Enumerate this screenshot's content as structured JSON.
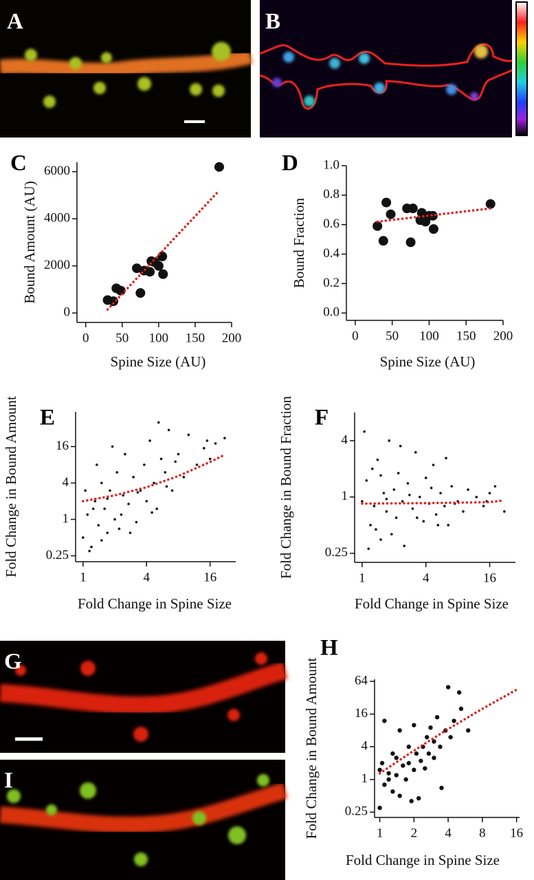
{
  "image_panels": [
    "A",
    "B",
    "G",
    "I"
  ],
  "chart_data": [
    {
      "type": "scatter",
      "panel": "C",
      "x_label": "Spine Size (AU)",
      "y_label": "Bound Amount (AU)",
      "x": [
        30,
        38,
        42,
        48,
        70,
        75,
        80,
        88,
        90,
        95,
        100,
        105,
        106,
        183
      ],
      "values": [
        550,
        500,
        1050,
        950,
        1900,
        850,
        1800,
        1750,
        2200,
        2150,
        2000,
        2400,
        1650,
        6200
      ],
      "color": "#111111",
      "fit": {
        "x": [
          30,
          183
        ],
        "values": [
          150,
          5200
        ],
        "color": "#e0201c"
      },
      "xscale": "linear",
      "yscale": "linear",
      "xlim": [
        -12,
        200
      ],
      "ylim": [
        -400,
        6400
      ],
      "xticks": [
        0,
        50,
        100,
        150,
        200
      ],
      "yticks": [
        0,
        2000,
        4000,
        6000
      ]
    },
    {
      "type": "scatter",
      "panel": "D",
      "x_label": "Spine Size (AU)",
      "y_label": "Bound Fraction",
      "x": [
        30,
        38,
        42,
        48,
        70,
        75,
        78,
        88,
        90,
        95,
        100,
        105,
        106,
        183
      ],
      "values": [
        0.59,
        0.49,
        0.75,
        0.67,
        0.71,
        0.48,
        0.71,
        0.63,
        0.68,
        0.62,
        0.66,
        0.66,
        0.57,
        0.74
      ],
      "color": "#111111",
      "fit": {
        "x": [
          30,
          183
        ],
        "values": [
          0.62,
          0.71
        ],
        "color": "#e0201c"
      },
      "xscale": "linear",
      "yscale": "linear",
      "xlim": [
        -12,
        200
      ],
      "ylim": [
        -0.05,
        1.0
      ],
      "xticks": [
        0,
        50,
        100,
        150,
        200
      ],
      "yticks": [
        {
          "value": 0,
          "label": "0.0"
        },
        0.2,
        0.4,
        0.6,
        0.8,
        {
          "value": 1,
          "label": "1.0"
        }
      ]
    },
    {
      "type": "scatter",
      "panel": "E",
      "x_label": "Fold Change in Spine Size",
      "y_label": "Fold Change in Bound Amount",
      "x": [
        1,
        1.1,
        1.2,
        1.3,
        1.4,
        1.5,
        1.6,
        1.7,
        1.8,
        2,
        2.1,
        2.2,
        2.4,
        2.5,
        2.7,
        3,
        3.2,
        3.5,
        3.8,
        4,
        4.3,
        4.7,
        5,
        5.5,
        6,
        6.5,
        7,
        8,
        9,
        10,
        12,
        14,
        16,
        15,
        18,
        22,
        1.05,
        1.15,
        1.25,
        1.35,
        1.5,
        1.7,
        1.9,
        2.3,
        2.8,
        3.3,
        4.5,
        5.2,
        6.2,
        7.5
      ],
      "values": [
        0.5,
        1.2,
        0.35,
        2,
        0.8,
        4,
        1.5,
        0.6,
        3,
        1,
        6,
        0.7,
        2.5,
        12,
        1.8,
        5,
        0.9,
        3,
        8,
        2,
        20,
        4,
        1.5,
        10,
        6,
        30,
        3,
        12,
        5,
        25,
        8,
        15,
        10,
        20,
        18,
        22,
        3,
        0.3,
        1.5,
        8,
        0.45,
        2.2,
        16,
        1.2,
        0.6,
        2.8,
        1.3,
        40,
        3.5,
        9
      ],
      "color": "#111111",
      "fit": {
        "x": [
          1,
          2,
          4,
          8,
          16,
          22
        ],
        "values": [
          2.0,
          2.5,
          3.4,
          5.2,
          8.9,
          11.7
        ],
        "color": "#e0201c"
      },
      "xscale": "log",
      "yscale": "log",
      "xlim": [
        0.85,
        28
      ],
      "ylim": [
        0.2,
        60
      ],
      "xticks": [
        1,
        4,
        16
      ],
      "yticks": [
        0.25,
        1,
        4,
        16
      ]
    },
    {
      "type": "scatter",
      "panel": "F",
      "x_label": "Fold Change in Spine Size",
      "y_label": "Fold Change in Bound Fraction",
      "x": [
        1,
        1.1,
        1.2,
        1.3,
        1.4,
        1.5,
        1.6,
        1.7,
        1.8,
        2,
        2.1,
        2.2,
        2.4,
        2.5,
        2.7,
        3,
        3.2,
        3.5,
        3.8,
        4,
        4.3,
        4.7,
        5,
        5.5,
        6,
        6.5,
        7,
        8,
        9,
        10,
        12,
        14,
        16,
        15,
        18,
        22,
        1.05,
        1.15,
        1.25,
        1.35,
        1.5,
        1.7,
        1.9,
        2.3,
        2.8,
        3.3,
        4.5,
        5.2,
        6.2,
        7.5
      ],
      "values": [
        0.9,
        1.5,
        0.5,
        0.8,
        2.5,
        0.35,
        1.1,
        0.7,
        4,
        1.2,
        0.6,
        1.8,
        0.9,
        0.3,
        1.4,
        0.75,
        3,
        1,
        0.55,
        1.6,
        0.85,
        2.2,
        0.65,
        1.1,
        0.8,
        0.5,
        1.3,
        0.9,
        0.7,
        1.2,
        1,
        0.8,
        1.1,
        0.9,
        1.3,
        0.7,
        5,
        0.28,
        2,
        0.45,
        1.7,
        0.95,
        0.4,
        3.5,
        1.05,
        0.6,
        1.25,
        0.5,
        2.6,
        0.85
      ],
      "color": "#111111",
      "fit": {
        "x": [
          1,
          4,
          16,
          22
        ],
        "values": [
          0.85,
          0.86,
          0.88,
          0.92
        ],
        "color": "#e0201c"
      },
      "xscale": "log",
      "yscale": "log",
      "xlim": [
        0.85,
        28
      ],
      "ylim": [
        0.2,
        8
      ],
      "xticks": [
        1,
        4,
        16
      ],
      "yticks": [
        0.25,
        1,
        4
      ]
    },
    {
      "type": "scatter",
      "panel": "H",
      "x_label": "Fold Change in Spine Size",
      "y_label": "Fold Change in Bound Amount",
      "x": [
        1,
        1,
        1.05,
        1.1,
        1.1,
        1.2,
        1.2,
        1.3,
        1.3,
        1.4,
        1.4,
        1.5,
        1.5,
        1.6,
        1.7,
        1.8,
        1.8,
        1.9,
        2,
        2,
        2.1,
        2.2,
        2.3,
        2.4,
        2.5,
        2.6,
        2.7,
        2.8,
        3,
        3,
        3.2,
        3.4,
        3.5,
        3.8,
        4,
        4.2,
        4.5,
        5,
        5.2,
        6
      ],
      "values": [
        0.3,
        1.5,
        2,
        0.8,
        12,
        1,
        1.3,
        0.6,
        3,
        1.2,
        2.5,
        0.5,
        8,
        1.8,
        1,
        2,
        4,
        0.4,
        1.5,
        10,
        3,
        0.45,
        2.2,
        4,
        1.6,
        6,
        3,
        9,
        2.5,
        5,
        14,
        4,
        0.7,
        8,
        50,
        6,
        12,
        40,
        20,
        8
      ],
      "color": "#111111",
      "fit": {
        "x": [
          1,
          2,
          4,
          8,
          16
        ],
        "values": [
          1.3,
          3.4,
          8.5,
          20,
          45
        ],
        "color": "#e0201c"
      },
      "xscale": "log",
      "yscale": "log",
      "xlim": [
        0.9,
        17
      ],
      "ylim": [
        0.2,
        70
      ],
      "xticks": [
        1,
        2,
        4,
        8,
        16
      ],
      "yticks": [
        0.25,
        1,
        4,
        16,
        64
      ]
    }
  ]
}
